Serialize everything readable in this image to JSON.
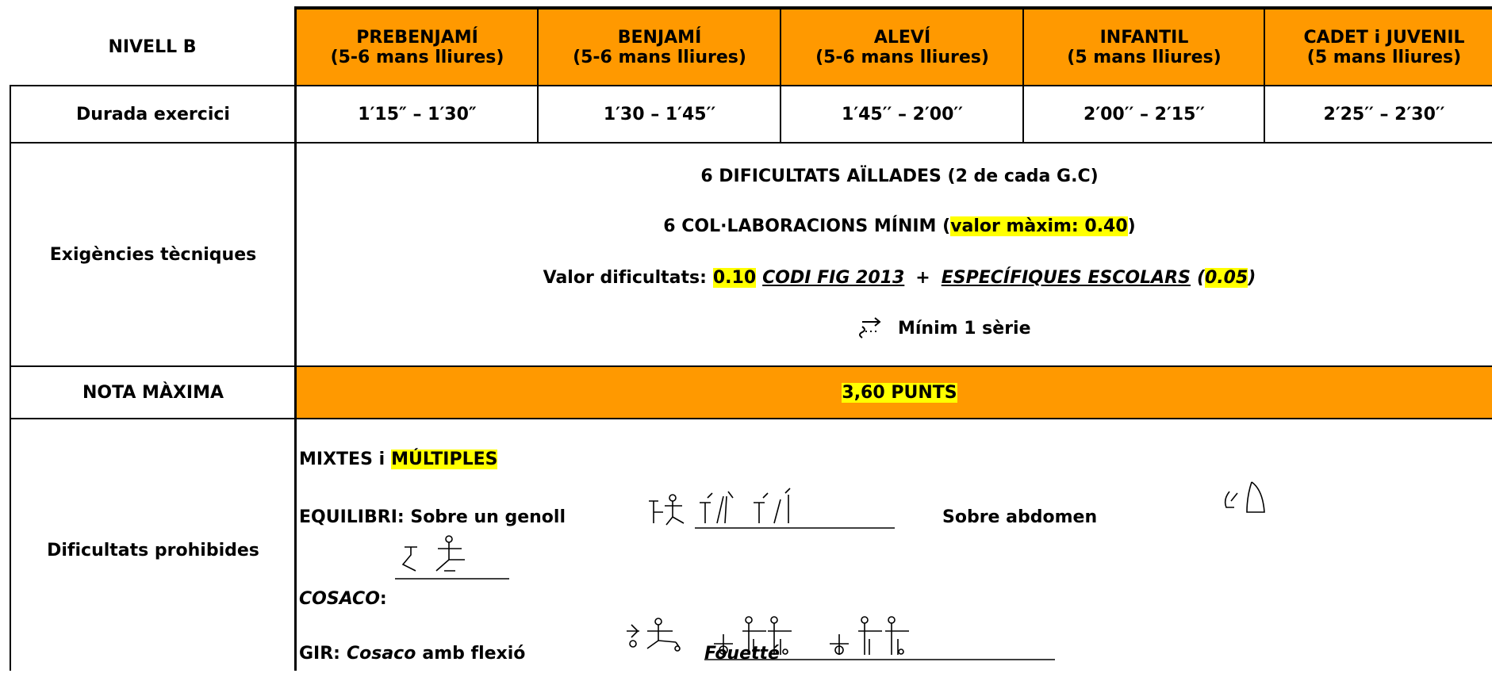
{
  "table": {
    "corner": "NIVELL B",
    "columns": [
      {
        "name": "PREBENJAMÍ",
        "detail": "(5-6 mans lliures)"
      },
      {
        "name": "BENJAMÍ",
        "detail": "(5-6 mans lliures)"
      },
      {
        "name": "ALEVÍ",
        "detail": "(5-6 mans lliures)"
      },
      {
        "name": "INFANTIL",
        "detail": "(5 mans lliures)"
      },
      {
        "name": "CADET i JUVENIL",
        "detail": "(5 mans lliures)"
      }
    ],
    "rows": [
      {
        "label": "Durada exercici",
        "values": [
          "1′15″ – 1′30″",
          "1′30 – 1′45′′",
          "1′45′′ – 2′00′′",
          "2′00′′ – 2′15′′",
          "2′25′′ – 2′30′′"
        ]
      },
      {
        "label": "Exigències tècniques",
        "lines": [
          [
            "6 DIFICULTATS AÏLLADES (2 de cada G.C)"
          ],
          [
            "6 COL·LABORACIONS MÍNIM (",
            "valor màxim: 0.40",
            ")"
          ],
          [
            "Valor dificultats:",
            "0.10",
            "CODI FIG 2013",
            "+",
            "ESPECÍFIQUES ESCOLARS",
            "(",
            "0.05",
            ")"
          ],
          [
            "Mínim 1 sèrie"
          ]
        ]
      },
      {
        "label": "NOTA MÀXIMA",
        "value": "3,60 PUNTS"
      },
      {
        "label": "Dificultats prohibides",
        "lines": [
          [
            "MIXTES i",
            "MÚLTIPLES"
          ],
          [
            "EQUILIBRI",
            ": Sobre un genoll",
            "Sobre abdomen"
          ],
          [
            "COSACO",
            ":"
          ],
          [
            "GIR:",
            "Cosaco",
            "amb flexió",
            "Fouetté"
          ]
        ]
      }
    ]
  }
}
